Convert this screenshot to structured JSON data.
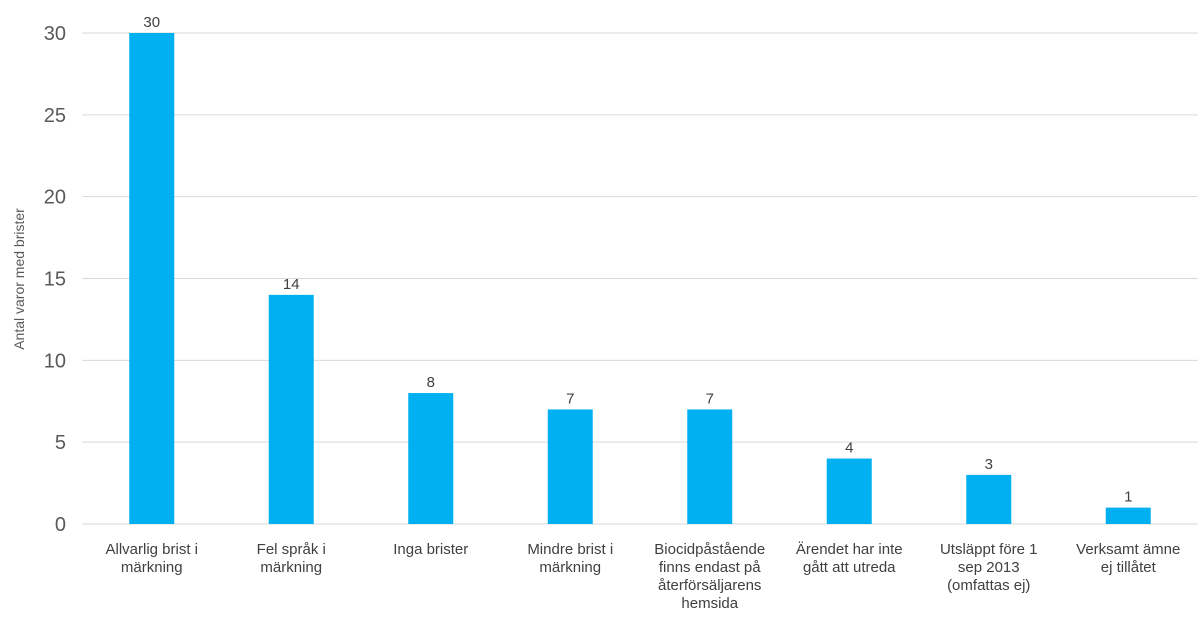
{
  "chart_data": {
    "type": "bar",
    "title": "",
    "xlabel": "",
    "ylabel": "Antal varor med brister",
    "ylim": [
      0,
      30
    ],
    "yticks": [
      0,
      5,
      10,
      15,
      20,
      25,
      30
    ],
    "grid": true,
    "categories": [
      [
        "Allvarlig brist i",
        "märkning"
      ],
      [
        "Fel språk i",
        "märkning"
      ],
      [
        "Inga brister"
      ],
      [
        "Mindre brist i",
        "märkning"
      ],
      [
        "Biocidpåstående",
        "finns endast på",
        "återförsäljarens",
        "hemsida"
      ],
      [
        "Ärendet har inte",
        "gått att utreda"
      ],
      [
        "Utsläppt före 1",
        "sep 2013",
        "(omfattas ej)"
      ],
      [
        "Verksamt ämne",
        "ej tillåtet"
      ]
    ],
    "values": [
      30,
      14,
      8,
      7,
      7,
      4,
      3,
      1
    ],
    "bar_color": "#00B0F0",
    "grid_color": "#D9D9D9"
  }
}
